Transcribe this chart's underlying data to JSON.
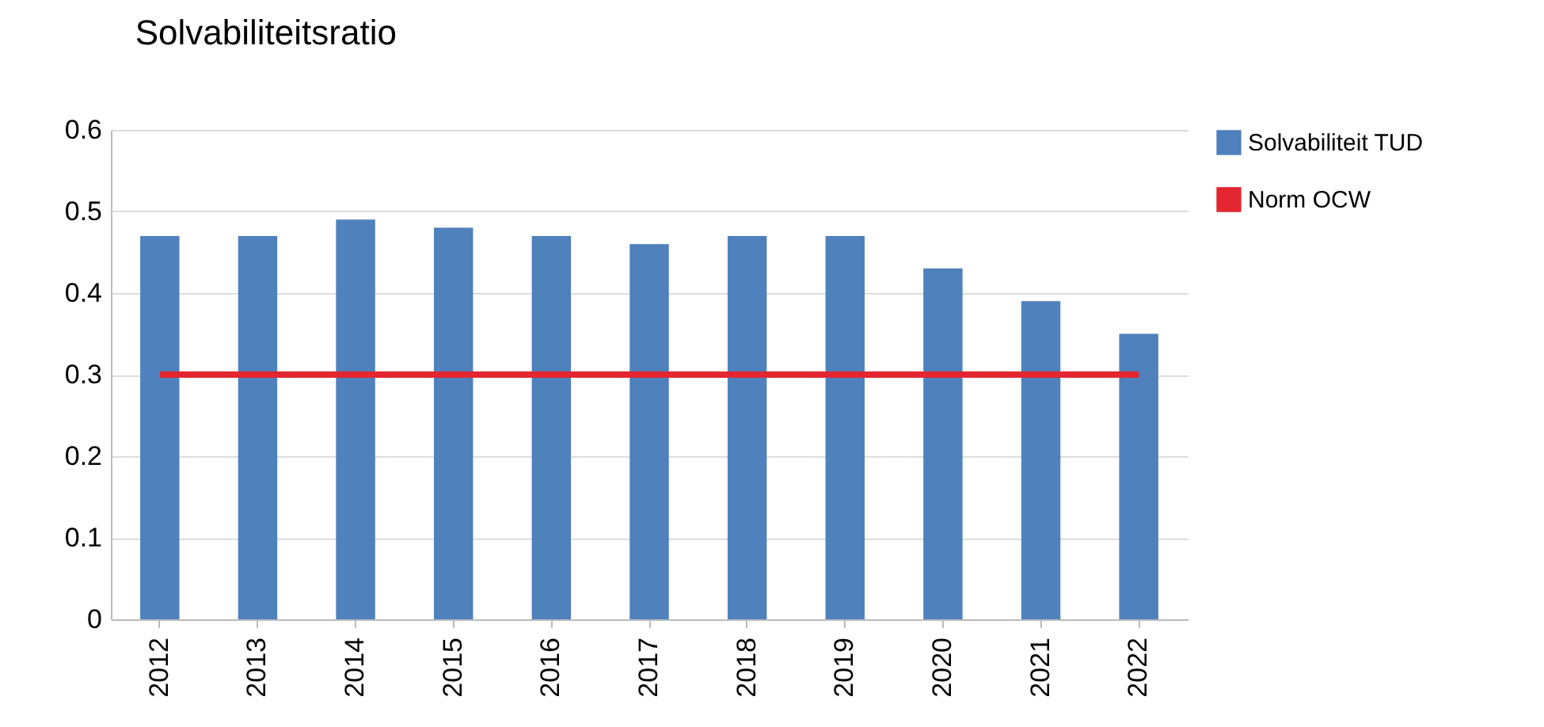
{
  "chart_data": {
    "type": "bar",
    "title": "Solvabiliteitsratio",
    "categories": [
      "2012",
      "2013",
      "2014",
      "2015",
      "2016",
      "2017",
      "2018",
      "2019",
      "2020",
      "2021",
      "2022"
    ],
    "series": [
      {
        "name": "Solvabiliteit TUD",
        "color": "#4f81bd",
        "values": [
          0.47,
          0.47,
          0.49,
          0.48,
          0.47,
          0.46,
          0.47,
          0.47,
          0.43,
          0.39,
          0.35
        ]
      },
      {
        "name": "Norm OCW",
        "type": "line",
        "color": "#e3262f",
        "values": [
          0.3,
          0.3,
          0.3,
          0.3,
          0.3,
          0.3,
          0.3,
          0.3,
          0.3,
          0.3,
          0.3
        ]
      }
    ],
    "ylim": [
      0,
      0.6
    ],
    "yticks": [
      0,
      0.1,
      0.2,
      0.3,
      0.4,
      0.5,
      0.6
    ],
    "grid": "y",
    "legend": "right"
  }
}
